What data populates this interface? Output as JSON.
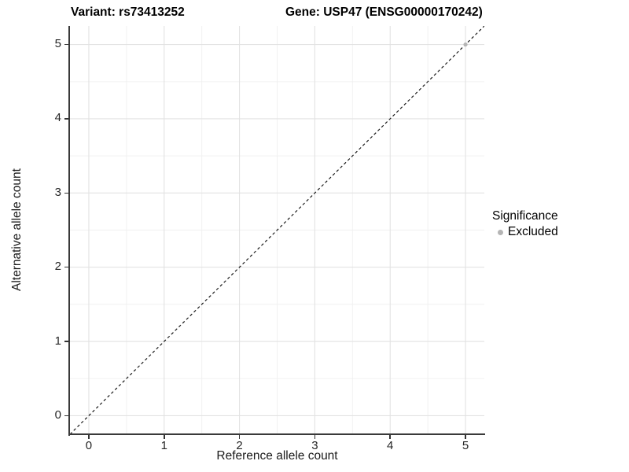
{
  "titles": {
    "left": "Variant: rs73413252",
    "right": "Gene: USP47 (ENSG00000170242)"
  },
  "colors": {
    "background": "#ffffff",
    "grid_major": "#e2e2e2",
    "grid_minor": "#f0f0f0",
    "axis_line": "#3a3a3a",
    "tick_mark": "#333333",
    "tick_label": "#262626",
    "dashed_line": "#111111",
    "point_excluded": "#b5b5b5"
  },
  "chart_data": {
    "type": "scatter",
    "title_left": "Variant: rs73413252",
    "title_right": "Gene: USP47 (ENSG00000170242)",
    "xlabel": "Reference allele count",
    "ylabel": "Alternative allele count",
    "xlim": [
      -0.25,
      5.25
    ],
    "ylim": [
      -0.25,
      5.25
    ],
    "x_ticks": [
      0,
      1,
      2,
      3,
      4,
      5
    ],
    "y_ticks": [
      0,
      1,
      2,
      3,
      4,
      5
    ],
    "grid": {
      "major": true,
      "minor": true,
      "minor_positions": [
        0.5,
        1.5,
        2.5,
        3.5,
        4.5
      ]
    },
    "reference_line": {
      "type": "identity y=x",
      "style": "dashed",
      "color": "#111111"
    },
    "series": [
      {
        "name": "Excluded",
        "color": "#b5b5b5",
        "marker": "circle",
        "points": [
          [
            5,
            5
          ]
        ]
      }
    ],
    "legend": {
      "title": "Significance",
      "position": "right",
      "entries": [
        {
          "label": "Excluded",
          "color": "#b5b5b5"
        }
      ]
    }
  }
}
